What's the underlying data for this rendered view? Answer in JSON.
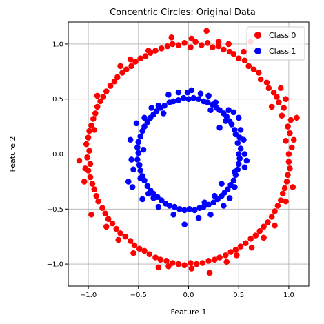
{
  "chart_data": {
    "type": "scatter",
    "title": "Concentric Circles: Original Data",
    "xlabel": "Feature 1",
    "ylabel": "Feature 2",
    "xlim": [
      -1.2,
      1.2
    ],
    "ylim": [
      -1.2,
      1.2
    ],
    "xticks": [
      -1.0,
      -0.5,
      0.0,
      0.5,
      1.0
    ],
    "yticks": [
      -1.0,
      -0.5,
      0.0,
      0.5,
      1.0
    ],
    "xtick_labels": [
      "−1.0",
      "−0.5",
      "0.0",
      "0.5",
      "1.0"
    ],
    "ytick_labels": [
      "−1.0",
      "−0.5",
      "0.0",
      "0.5",
      "1.0"
    ],
    "grid": true,
    "legend_position": "top-right",
    "series": [
      {
        "name": "Class 0",
        "color": "#ff0000",
        "points": [
          [
            1.0,
            0.0
          ],
          [
            1.03,
            0.06
          ],
          [
            0.97,
            0.12
          ],
          [
            1.01,
            0.19
          ],
          [
            0.99,
            0.25
          ],
          [
            1.02,
            0.31
          ],
          [
            0.93,
            0.35
          ],
          [
            0.95,
            0.42
          ],
          [
            0.9,
            0.47
          ],
          [
            0.88,
            0.52
          ],
          [
            0.85,
            0.56
          ],
          [
            0.8,
            0.6
          ],
          [
            0.78,
            0.65
          ],
          [
            0.72,
            0.68
          ],
          [
            0.7,
            0.74
          ],
          [
            0.65,
            0.77
          ],
          [
            0.6,
            0.8
          ],
          [
            0.56,
            0.85
          ],
          [
            0.5,
            0.87
          ],
          [
            0.45,
            0.91
          ],
          [
            0.41,
            0.93
          ],
          [
            0.35,
            0.95
          ],
          [
            0.3,
            0.98
          ],
          [
            0.24,
            0.97
          ],
          [
            0.19,
            1.01
          ],
          [
            0.13,
            0.99
          ],
          [
            0.07,
            1.02
          ],
          [
            0.02,
            0.97
          ],
          [
            -0.04,
            1.01
          ],
          [
            -0.1,
            0.99
          ],
          [
            -0.16,
            1.0
          ],
          [
            -0.21,
            0.98
          ],
          [
            -0.27,
            0.96
          ],
          [
            -0.33,
            0.94
          ],
          [
            -0.38,
            0.92
          ],
          [
            -0.43,
            0.89
          ],
          [
            -0.48,
            0.87
          ],
          [
            -0.53,
            0.84
          ],
          [
            -0.57,
            0.8
          ],
          [
            -0.62,
            0.77
          ],
          [
            -0.66,
            0.74
          ],
          [
            -0.71,
            0.7
          ],
          [
            -0.74,
            0.66
          ],
          [
            -0.78,
            0.62
          ],
          [
            -0.82,
            0.57
          ],
          [
            -0.85,
            0.52
          ],
          [
            -0.88,
            0.48
          ],
          [
            -0.91,
            0.43
          ],
          [
            -0.93,
            0.37
          ],
          [
            -0.95,
            0.32
          ],
          [
            -0.97,
            0.26
          ],
          [
            -0.99,
            0.21
          ],
          [
            -1.0,
            0.15
          ],
          [
            -1.02,
            0.09
          ],
          [
            -0.99,
            0.03
          ],
          [
            -1.01,
            -0.03
          ],
          [
            -0.98,
            -0.09
          ],
          [
            -1.0,
            -0.15
          ],
          [
            -0.98,
            -0.21
          ],
          [
            -0.96,
            -0.27
          ],
          [
            -0.94,
            -0.32
          ],
          [
            -0.92,
            -0.38
          ],
          [
            -0.9,
            -0.43
          ],
          [
            -0.86,
            -0.49
          ],
          [
            -0.83,
            -0.54
          ],
          [
            -0.8,
            -0.59
          ],
          [
            -0.76,
            -0.63
          ],
          [
            -0.72,
            -0.68
          ],
          [
            -0.68,
            -0.72
          ],
          [
            -0.63,
            -0.75
          ],
          [
            -0.58,
            -0.79
          ],
          [
            -0.54,
            -0.83
          ],
          [
            -0.49,
            -0.86
          ],
          [
            -0.44,
            -0.88
          ],
          [
            -0.39,
            -0.91
          ],
          [
            -0.33,
            -0.94
          ],
          [
            -0.28,
            -0.96
          ],
          [
            -0.22,
            -0.97
          ],
          [
            -0.16,
            -0.99
          ],
          [
            -0.1,
            -1.0
          ],
          [
            -0.04,
            -1.01
          ],
          [
            0.02,
            -0.99
          ],
          [
            0.08,
            -1.0
          ],
          [
            0.14,
            -0.99
          ],
          [
            0.2,
            -0.97
          ],
          [
            0.26,
            -0.96
          ],
          [
            0.31,
            -0.94
          ],
          [
            0.37,
            -0.92
          ],
          [
            0.42,
            -0.89
          ],
          [
            0.47,
            -0.87
          ],
          [
            0.52,
            -0.84
          ],
          [
            0.57,
            -0.81
          ],
          [
            0.62,
            -0.77
          ],
          [
            0.67,
            -0.74
          ],
          [
            0.71,
            -0.7
          ],
          [
            0.75,
            -0.66
          ],
          [
            0.79,
            -0.62
          ],
          [
            0.83,
            -0.57
          ],
          [
            0.86,
            -0.52
          ],
          [
            0.89,
            -0.47
          ],
          [
            0.92,
            -0.42
          ],
          [
            0.94,
            -0.36
          ],
          [
            0.96,
            -0.31
          ],
          [
            0.98,
            -0.25
          ],
          [
            0.99,
            -0.19
          ],
          [
            1.01,
            -0.13
          ],
          [
            1.0,
            -0.07
          ],
          [
            0.18,
            1.12
          ],
          [
            0.62,
            1.02
          ],
          [
            -0.4,
            0.94
          ],
          [
            0.4,
            1.0
          ],
          [
            1.08,
            0.33
          ],
          [
            1.05,
            0.13
          ],
          [
            -1.09,
            -0.06
          ],
          [
            -1.03,
            -0.13
          ],
          [
            0.97,
            -0.43
          ],
          [
            0.21,
            -1.08
          ],
          [
            -0.3,
            -1.03
          ],
          [
            0.48,
            -0.92
          ],
          [
            -0.82,
            -0.66
          ],
          [
            -0.91,
            0.53
          ],
          [
            0.83,
            0.43
          ],
          [
            -0.17,
            1.06
          ],
          [
            0.3,
            1.02
          ],
          [
            0.03,
            1.05
          ],
          [
            0.92,
            0.6
          ],
          [
            1.04,
            -0.3
          ],
          [
            -1.04,
            -0.25
          ],
          [
            -0.68,
            0.8
          ],
          [
            0.75,
            -0.76
          ],
          [
            0.03,
            -1.04
          ],
          [
            -0.55,
            -0.9
          ],
          [
            -0.7,
            -0.78
          ],
          [
            0.63,
            -0.85
          ],
          [
            0.55,
            0.93
          ],
          [
            -0.58,
            0.86
          ],
          [
            -0.94,
            0.22
          ],
          [
            0.86,
            -0.65
          ],
          [
            0.97,
            0.5
          ],
          [
            -0.2,
            -1.02
          ],
          [
            0.38,
            -0.98
          ],
          [
            -0.97,
            -0.55
          ]
        ]
      },
      {
        "name": "Class 1",
        "color": "#0000ff",
        "points": [
          [
            0.5,
            0.0
          ],
          [
            0.52,
            0.05
          ],
          [
            0.49,
            0.1
          ],
          [
            0.51,
            0.15
          ],
          [
            0.47,
            0.18
          ],
          [
            0.46,
            0.22
          ],
          [
            0.43,
            0.27
          ],
          [
            0.41,
            0.3
          ],
          [
            0.38,
            0.34
          ],
          [
            0.35,
            0.37
          ],
          [
            0.31,
            0.4
          ],
          [
            0.28,
            0.42
          ],
          [
            0.24,
            0.45
          ],
          [
            0.19,
            0.47
          ],
          [
            0.15,
            0.48
          ],
          [
            0.1,
            0.5
          ],
          [
            0.05,
            0.51
          ],
          [
            0.0,
            0.5
          ],
          [
            -0.05,
            0.51
          ],
          [
            -0.1,
            0.49
          ],
          [
            -0.15,
            0.48
          ],
          [
            -0.19,
            0.47
          ],
          [
            -0.24,
            0.44
          ],
          [
            -0.28,
            0.42
          ],
          [
            -0.32,
            0.39
          ],
          [
            -0.35,
            0.36
          ],
          [
            -0.38,
            0.33
          ],
          [
            -0.41,
            0.29
          ],
          [
            -0.44,
            0.25
          ],
          [
            -0.46,
            0.21
          ],
          [
            -0.48,
            0.16
          ],
          [
            -0.5,
            0.11
          ],
          [
            -0.51,
            0.06
          ],
          [
            -0.5,
            0.01
          ],
          [
            -0.51,
            -0.05
          ],
          [
            -0.49,
            -0.1
          ],
          [
            -0.48,
            -0.15
          ],
          [
            -0.46,
            -0.2
          ],
          [
            -0.44,
            -0.24
          ],
          [
            -0.41,
            -0.29
          ],
          [
            -0.38,
            -0.33
          ],
          [
            -0.35,
            -0.36
          ],
          [
            -0.31,
            -0.39
          ],
          [
            -0.27,
            -0.42
          ],
          [
            -0.23,
            -0.45
          ],
          [
            -0.19,
            -0.47
          ],
          [
            -0.14,
            -0.48
          ],
          [
            -0.09,
            -0.5
          ],
          [
            -0.04,
            -0.51
          ],
          [
            0.01,
            -0.5
          ],
          [
            0.06,
            -0.51
          ],
          [
            0.11,
            -0.49
          ],
          [
            0.15,
            -0.48
          ],
          [
            0.2,
            -0.46
          ],
          [
            0.25,
            -0.44
          ],
          [
            0.29,
            -0.41
          ],
          [
            0.33,
            -0.38
          ],
          [
            0.36,
            -0.35
          ],
          [
            0.39,
            -0.32
          ],
          [
            0.42,
            -0.28
          ],
          [
            0.45,
            -0.24
          ],
          [
            0.47,
            -0.19
          ],
          [
            0.49,
            -0.14
          ],
          [
            0.5,
            -0.09
          ],
          [
            0.51,
            -0.04
          ],
          [
            0.03,
            0.58
          ],
          [
            -0.01,
            0.56
          ],
          [
            -0.46,
            -0.41
          ],
          [
            -0.6,
            -0.25
          ],
          [
            -0.58,
            0.13
          ],
          [
            -0.57,
            -0.05
          ],
          [
            0.56,
            -0.12
          ],
          [
            0.56,
            0.0
          ],
          [
            0.55,
            0.13
          ],
          [
            0.45,
            0.38
          ],
          [
            -0.04,
            -0.64
          ],
          [
            0.22,
            -0.55
          ],
          [
            -0.3,
            -0.48
          ],
          [
            0.35,
            -0.47
          ],
          [
            -0.37,
            0.42
          ],
          [
            0.2,
            0.53
          ],
          [
            0.31,
            0.24
          ],
          [
            -0.55,
            -0.14
          ],
          [
            0.41,
            -0.4
          ],
          [
            -0.44,
            0.33
          ],
          [
            0.52,
            0.22
          ],
          [
            -0.2,
            0.54
          ],
          [
            0.1,
            -0.58
          ],
          [
            -0.15,
            -0.55
          ],
          [
            0.27,
            0.47
          ],
          [
            -0.52,
            0.28
          ],
          [
            0.46,
            -0.3
          ],
          [
            -0.4,
            -0.36
          ],
          [
            0.58,
            -0.06
          ],
          [
            -0.25,
            0.37
          ],
          [
            0.37,
            0.3
          ],
          [
            0.33,
            -0.27
          ],
          [
            -0.56,
            -0.3
          ],
          [
            0.12,
            0.55
          ],
          [
            -0.1,
            0.56
          ],
          [
            0.5,
            0.33
          ],
          [
            -0.35,
            -0.4
          ],
          [
            0.4,
            0.4
          ],
          [
            0.26,
            -0.38
          ],
          [
            -0.48,
            -0.22
          ],
          [
            0.46,
            -0.16
          ],
          [
            -0.3,
            0.44
          ],
          [
            0.16,
            -0.44
          ],
          [
            0.22,
            0.4
          ],
          [
            -0.45,
            0.04
          ]
        ]
      }
    ]
  }
}
